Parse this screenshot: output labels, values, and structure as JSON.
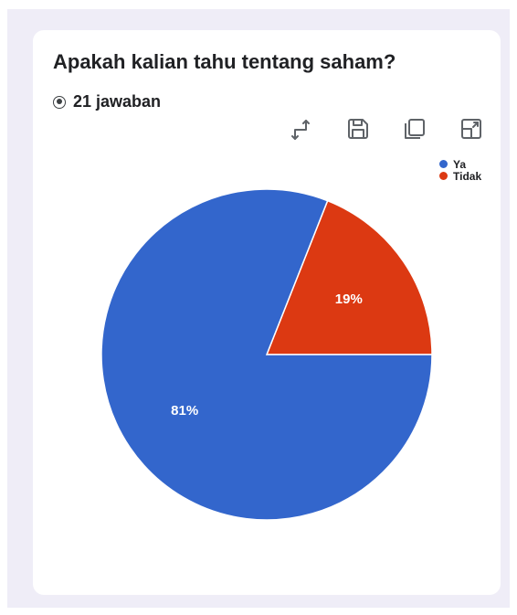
{
  "card": {
    "title": "Apakah kalian tahu tentang saham?",
    "responses": "21 jawaban"
  },
  "toolbar": {
    "icons": [
      "swap-axes-icon",
      "save-icon",
      "copy-icon",
      "expand-icon"
    ]
  },
  "chart_data": {
    "type": "pie",
    "categories": [
      "Ya",
      "Tidak"
    ],
    "values": [
      81,
      19
    ],
    "labels": [
      "81%",
      "19%"
    ],
    "colors": [
      "#3366cc",
      "#dc3912"
    ],
    "legend": "top-right"
  }
}
